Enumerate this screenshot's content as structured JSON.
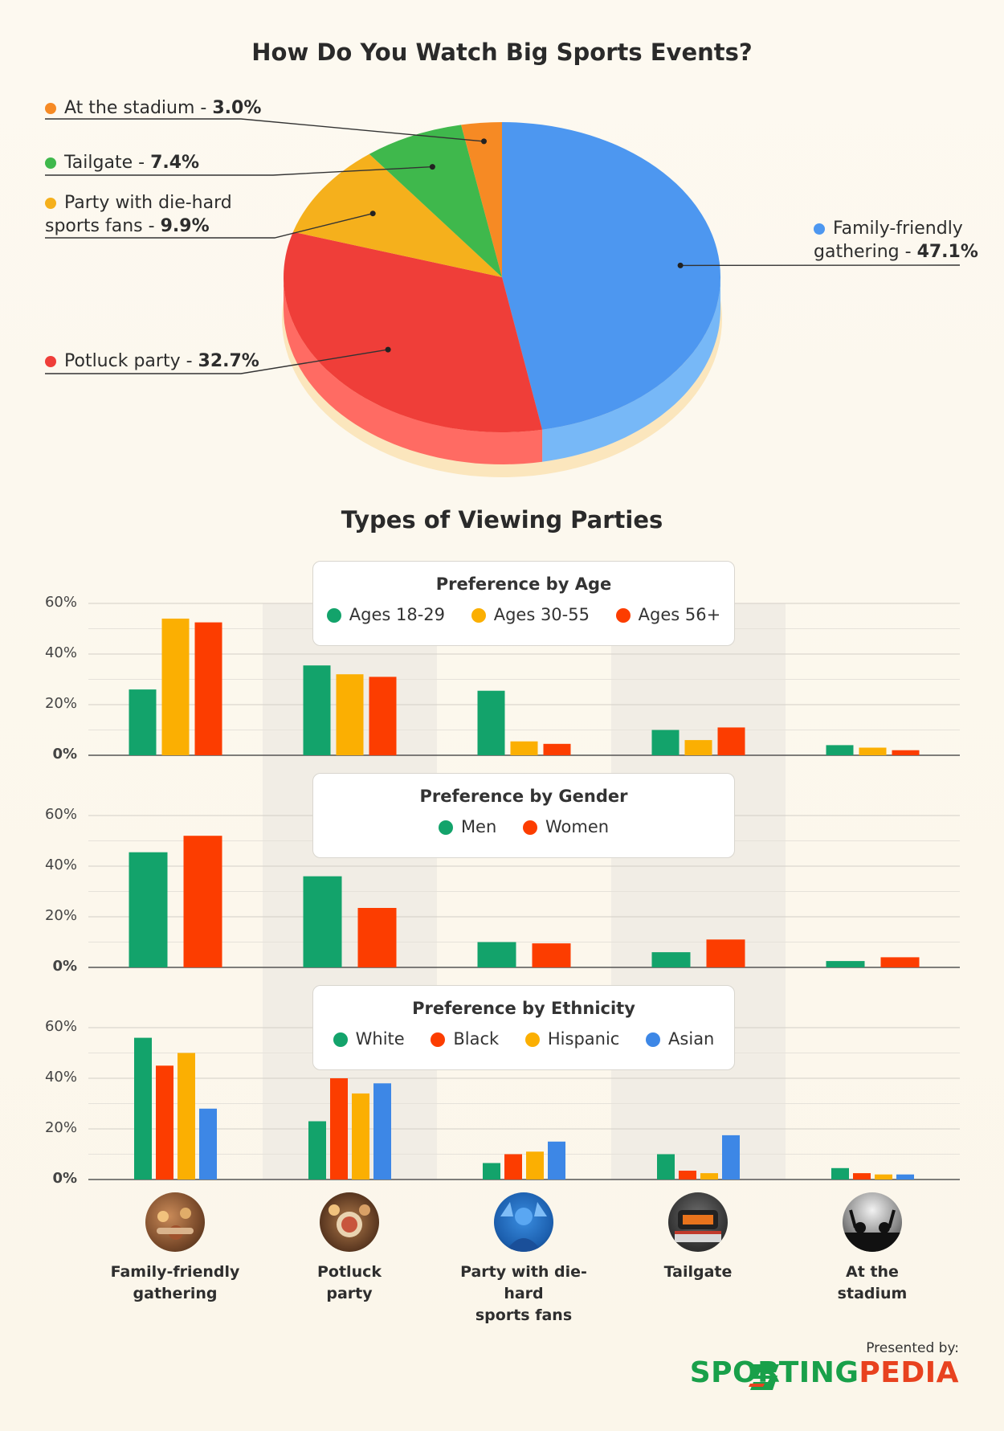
{
  "chart_data": [
    {
      "type": "pie",
      "title": "How Do You Watch Big Sports Events?",
      "labels": [
        "Family-friendly gathering",
        "Potluck party",
        "Party with die-hard sports fans",
        "Tailgate",
        "At the stadium"
      ],
      "values": [
        47.1,
        32.7,
        9.9,
        7.4,
        3.0
      ],
      "value_labels": [
        "47.1%",
        "32.7%",
        "9.9%",
        "7.4%",
        "3.0%"
      ],
      "colors": [
        "#4d97f0",
        "#ef3e39",
        "#f5b01c",
        "#3fb84c",
        "#f68a24"
      ],
      "side_colors": [
        "#77b8f7",
        "#ff6b63",
        "#f7c957",
        "#6bd27a",
        "#f9a85a"
      ]
    },
    {
      "type": "bar",
      "title": "Preference by Age",
      "categories": [
        "Family-friendly gathering",
        "Potluck party",
        "Party with die-hard sports fans",
        "Tailgate",
        "At the stadium"
      ],
      "series": [
        {
          "name": "Ages 18-29",
          "color": "#13a36b",
          "values": [
            26,
            35.5,
            25.5,
            10,
            4
          ]
        },
        {
          "name": "Ages 30-55",
          "color": "#fbaf02",
          "values": [
            54,
            32,
            5.5,
            6,
            3
          ]
        },
        {
          "name": "Ages 56+",
          "color": "#fc3d00",
          "values": [
            52.5,
            31,
            4.5,
            11,
            2
          ]
        }
      ],
      "ylim": [
        0,
        60
      ],
      "yticks": [
        "60%",
        "40%",
        "20%",
        "0%"
      ]
    },
    {
      "type": "bar",
      "title": "Preference by Gender",
      "categories": [
        "Family-friendly gathering",
        "Potluck party",
        "Party with die-hard sports fans",
        "Tailgate",
        "At the stadium"
      ],
      "series": [
        {
          "name": "Men",
          "color": "#13a36b",
          "values": [
            45.5,
            36,
            10,
            6,
            2.5
          ]
        },
        {
          "name": "Women",
          "color": "#fc3d00",
          "values": [
            52,
            23.5,
            9.5,
            11,
            4
          ]
        }
      ],
      "ylim": [
        0,
        60
      ],
      "yticks": [
        "60%",
        "40%",
        "20%",
        "0%"
      ]
    },
    {
      "type": "bar",
      "title": "Preference by Ethnicity",
      "categories": [
        "Family-friendly gathering",
        "Potluck party",
        "Party with die-hard sports fans",
        "Tailgate",
        "At the stadium"
      ],
      "series": [
        {
          "name": "White",
          "color": "#13a36b",
          "values": [
            56,
            23,
            6.5,
            10,
            4.5
          ]
        },
        {
          "name": "Black",
          "color": "#fc3d00",
          "values": [
            45,
            40,
            10,
            3.5,
            2.5
          ]
        },
        {
          "name": "Hispanic",
          "color": "#fbaf02",
          "values": [
            50,
            34,
            11,
            2.5,
            2
          ]
        },
        {
          "name": "Asian",
          "color": "#3d87e6",
          "values": [
            28,
            38,
            15,
            17.5,
            2
          ]
        }
      ],
      "ylim": [
        0,
        60
      ],
      "yticks": [
        "60%",
        "40%",
        "20%",
        "0%"
      ]
    }
  ],
  "bars_title": "Types of Viewing Parties",
  "pie_labels": {
    "stadium": {
      "name": "At the stadium",
      "value": "3.0%"
    },
    "tailgate": {
      "name": "Tailgate",
      "value": "7.4%"
    },
    "diehard": {
      "line1": "Party with die-hard",
      "line2": "sports fans",
      "value": "9.9%"
    },
    "family": {
      "line1": "Family-friendly",
      "line2": "gathering",
      "value": "47.1%"
    },
    "potluck": {
      "name": "Potluck party",
      "value": "32.7%"
    }
  },
  "categories_display": [
    {
      "label": "Family-friendly\ngathering",
      "icon": "family-gathering-icon"
    },
    {
      "label": "Potluck\nparty",
      "icon": "potluck-icon"
    },
    {
      "label": "Party with die-hard\nsports fans",
      "icon": "sports-fans-icon"
    },
    {
      "label": "Tailgate",
      "icon": "tailgate-icon"
    },
    {
      "label": "At the\nstadium",
      "icon": "stadium-icon"
    }
  ],
  "footer": {
    "presented": "Presented by:",
    "brand_part1": "SPORTING",
    "brand_part2": "PEDIA"
  }
}
